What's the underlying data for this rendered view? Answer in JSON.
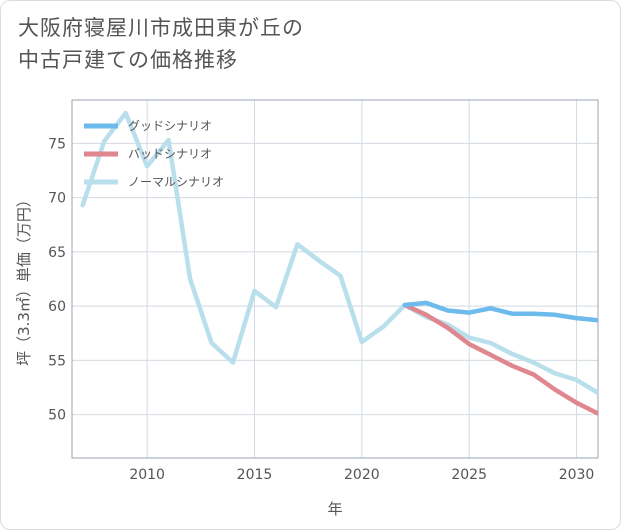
{
  "chart_data": {
    "type": "line",
    "title": [
      "大阪府寝屋川市成田東が丘の",
      "中古戸建ての価格推移"
    ],
    "xlabel": "年",
    "ylabel": "坪（3.3㎡）単価（万円）",
    "xlim": [
      2006.5,
      2031
    ],
    "ylim": [
      46,
      79
    ],
    "xticks": [
      2010,
      2015,
      2020,
      2025,
      2030
    ],
    "yticks": [
      50,
      55,
      60,
      65,
      70,
      75
    ],
    "grid": true,
    "legend_position": "top-left",
    "series": [
      {
        "name": "グッドシナリオ",
        "color": "#6cbbec",
        "x": [
          2022,
          2023,
          2024,
          2025,
          2026,
          2027,
          2028,
          2029,
          2030,
          2031
        ],
        "y": [
          60.1,
          60.3,
          59.6,
          59.4,
          59.8,
          59.3,
          59.3,
          59.2,
          58.9,
          58.7
        ]
      },
      {
        "name": "バッドシナリオ",
        "color": "#e0868f",
        "x": [
          2022,
          2023,
          2024,
          2025,
          2026,
          2027,
          2028,
          2029,
          2030,
          2031
        ],
        "y": [
          60.1,
          59.2,
          58.0,
          56.5,
          55.5,
          54.5,
          53.7,
          52.3,
          51.1,
          50.1
        ]
      },
      {
        "name": "ノーマルシナリオ",
        "color": "#b9dfec",
        "x": [
          2007,
          2008,
          2009,
          2010,
          2011,
          2012,
          2013,
          2014,
          2015,
          2016,
          2017,
          2018,
          2019,
          2020,
          2021,
          2022,
          2023,
          2024,
          2025,
          2026,
          2027,
          2028,
          2029,
          2030,
          2031
        ],
        "y": [
          69.3,
          75.2,
          77.8,
          72.9,
          75.3,
          62.5,
          56.6,
          54.8,
          61.4,
          59.9,
          65.7,
          64.2,
          62.8,
          56.7,
          58.1,
          60.1,
          59.0,
          58.3,
          57.1,
          56.6,
          55.6,
          54.8,
          53.8,
          53.2,
          52.0
        ]
      }
    ]
  }
}
